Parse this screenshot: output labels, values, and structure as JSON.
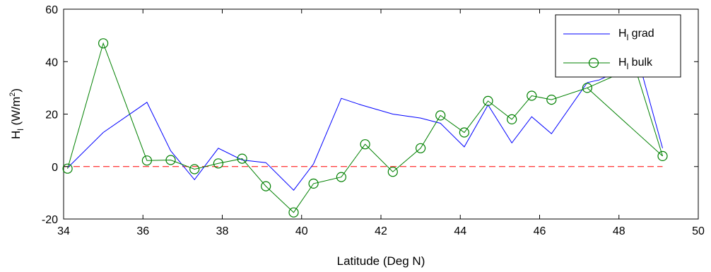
{
  "chart_data": {
    "type": "line",
    "title": "",
    "xlabel": "Latitude (Deg N)",
    "ylabel": {
      "main": "H",
      "sub": "l",
      "unit_prefix": " (W/m",
      "sup": "2",
      "unit_suffix": ")"
    },
    "xlim": [
      34,
      50
    ],
    "ylim": [
      -20,
      60
    ],
    "x_ticks": [
      34,
      36,
      38,
      40,
      42,
      44,
      46,
      48,
      50
    ],
    "y_ticks": [
      -20,
      0,
      20,
      40,
      60
    ],
    "grid": false,
    "legend_position": "top-right",
    "reference_line": {
      "y": 0,
      "color": "#ff0000",
      "style": "dashed"
    },
    "series": [
      {
        "name": {
          "main": "H",
          "sub": "l",
          "rest": " grad"
        },
        "color": "#0000ff",
        "marker": "none",
        "points": [
          [
            34.1,
            -0.5
          ],
          [
            35.0,
            13.0
          ],
          [
            36.1,
            24.5
          ],
          [
            36.7,
            6.0
          ],
          [
            37.3,
            -5.0
          ],
          [
            37.9,
            7.0
          ],
          [
            38.5,
            2.5
          ],
          [
            39.1,
            1.5
          ],
          [
            39.8,
            -9.0
          ],
          [
            40.3,
            1.0
          ],
          [
            41.0,
            26.0
          ],
          [
            41.5,
            23.5
          ],
          [
            42.3,
            20.0
          ],
          [
            43.0,
            18.5
          ],
          [
            43.5,
            16.5
          ],
          [
            44.1,
            7.5
          ],
          [
            44.7,
            23.5
          ],
          [
            45.3,
            9.0
          ],
          [
            45.8,
            19.0
          ],
          [
            46.3,
            12.5
          ],
          [
            47.2,
            32.0
          ],
          [
            47.5,
            33.0
          ],
          [
            48.5,
            40.0
          ],
          [
            49.1,
            7.0
          ]
        ]
      },
      {
        "name": {
          "main": "H",
          "sub": "l",
          "rest": " bulk"
        },
        "color": "#008000",
        "marker": "circle",
        "points": [
          [
            34.1,
            -0.8
          ],
          [
            35.0,
            47.0
          ],
          [
            36.1,
            2.3
          ],
          [
            36.7,
            2.5
          ],
          [
            37.3,
            -1.0
          ],
          [
            37.9,
            1.2
          ],
          [
            38.5,
            3.0
          ],
          [
            39.1,
            -7.5
          ],
          [
            39.8,
            -17.5
          ],
          [
            40.3,
            -6.5
          ],
          [
            41.0,
            -4.0
          ],
          [
            41.6,
            8.5
          ],
          [
            42.3,
            -2.0
          ],
          [
            43.0,
            7.0
          ],
          [
            43.5,
            19.5
          ],
          [
            44.1,
            13.0
          ],
          [
            44.7,
            25.0
          ],
          [
            45.3,
            18.0
          ],
          [
            45.8,
            27.0
          ],
          [
            46.3,
            25.5
          ],
          [
            47.2,
            30.0
          ],
          [
            49.1,
            4.0
          ]
        ],
        "extra_line_points": [
          [
            47.2,
            30.0
          ],
          [
            48.4,
            38.0
          ],
          [
            49.1,
            4.0
          ]
        ]
      }
    ]
  }
}
